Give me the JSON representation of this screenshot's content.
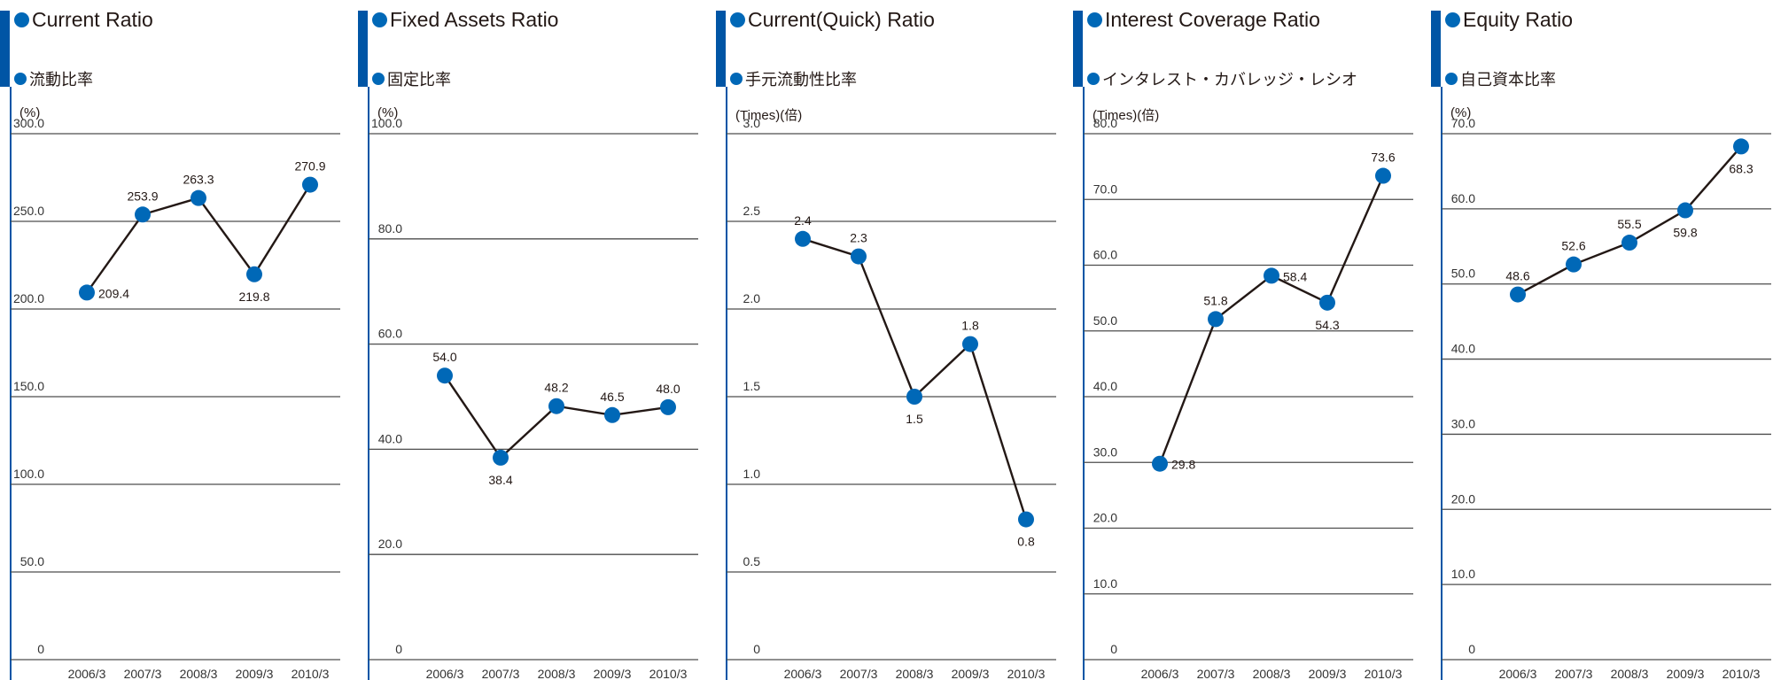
{
  "colors": {
    "accent": "#0055a5",
    "marker": "#0068b7",
    "line": "#231815",
    "grid": "#4d4d4d"
  },
  "panels": [
    {
      "title_en": "Current Ratio",
      "title_jp": "流動比率",
      "unit": "(%)",
      "ytick_labels": [
        "300.0",
        "250.0",
        "200.0",
        "150.0",
        "100.0",
        "50.0",
        "0"
      ]
    },
    {
      "title_en": "Fixed Assets Ratio",
      "title_jp": "固定比率",
      "unit": "(%)",
      "ytick_labels": [
        "100.0",
        "80.0",
        "60.0",
        "40.0",
        "20.0",
        "0"
      ]
    },
    {
      "title_en": "Current(Quick) Ratio",
      "title_jp": "手元流動性比率",
      "unit": "(Times)(倍)",
      "ytick_labels": [
        "3.0",
        "2.5",
        "2.0",
        "1.5",
        "1.0",
        "0.5",
        "0"
      ]
    },
    {
      "title_en": "Interest Coverage Ratio",
      "title_jp": "インタレスト・カバレッジ・レシオ",
      "unit": "(Times)(倍)",
      "ytick_labels": [
        "80.0",
        "70.0",
        "60.0",
        "50.0",
        "40.0",
        "30.0",
        "20.0",
        "10.0",
        "0"
      ]
    },
    {
      "title_en": "Equity Ratio",
      "title_jp": "自己資本比率",
      "unit": "(%)",
      "ytick_labels": [
        "70.0",
        "60.0",
        "50.0",
        "40.0",
        "30.0",
        "20.0",
        "10.0",
        "0"
      ]
    }
  ],
  "chart_data": [
    {
      "type": "line",
      "title": "Current Ratio",
      "ylabel": "(%)",
      "ylim": [
        0,
        300
      ],
      "categories": [
        "2006/3",
        "2007/3",
        "2008/3",
        "2009/3",
        "2010/3"
      ],
      "values": [
        209.4,
        253.9,
        263.3,
        219.8,
        270.9
      ],
      "value_labels": [
        "209.4",
        "253.9",
        "263.3",
        "219.8",
        "270.9"
      ],
      "grid": true
    },
    {
      "type": "line",
      "title": "Fixed Assets Ratio",
      "ylabel": "(%)",
      "ylim": [
        0,
        100
      ],
      "categories": [
        "2006/3",
        "2007/3",
        "2008/3",
        "2009/3",
        "2010/3"
      ],
      "values": [
        54.0,
        38.4,
        48.2,
        46.5,
        48.0
      ],
      "value_labels": [
        "54.0",
        "38.4",
        "48.2",
        "46.5",
        "48.0"
      ],
      "grid": true
    },
    {
      "type": "line",
      "title": "Current(Quick) Ratio",
      "ylabel": "(Times)(倍)",
      "ylim": [
        0,
        3
      ],
      "categories": [
        "2006/3",
        "2007/3",
        "2008/3",
        "2009/3",
        "2010/3"
      ],
      "values": [
        2.4,
        2.3,
        1.5,
        1.8,
        0.8
      ],
      "value_labels": [
        "2.4",
        "2.3",
        "1.5",
        "1.8",
        "0.8"
      ],
      "grid": true
    },
    {
      "type": "line",
      "title": "Interest Coverage Ratio",
      "ylabel": "(Times)(倍)",
      "ylim": [
        0,
        80
      ],
      "categories": [
        "2006/3",
        "2007/3",
        "2008/3",
        "2009/3",
        "2010/3"
      ],
      "values": [
        29.8,
        51.8,
        58.4,
        54.3,
        73.6
      ],
      "value_labels": [
        "29.8",
        "51.8",
        "58.4",
        "54.3",
        "73.6"
      ],
      "grid": true
    },
    {
      "type": "line",
      "title": "Equity Ratio",
      "ylabel": "(%)",
      "ylim": [
        0,
        70
      ],
      "categories": [
        "2006/3",
        "2007/3",
        "2008/3",
        "2009/3",
        "2010/3"
      ],
      "values": [
        48.6,
        52.6,
        55.5,
        59.8,
        68.3
      ],
      "value_labels": [
        "48.6",
        "52.6",
        "55.5",
        "59.8",
        "68.3"
      ],
      "grid": true
    }
  ]
}
